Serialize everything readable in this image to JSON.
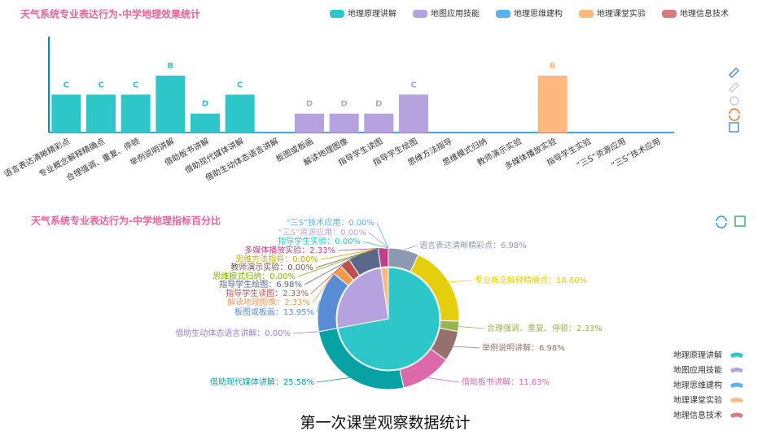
{
  "caption": "第一次课堂观察数据统计",
  "chart_data": [
    {
      "type": "bar",
      "title": "天气系统专业表达行为-中学地理效果统计",
      "legend": "top-right",
      "categories": [
        "语言表达清晰精彩点",
        "专业概念解释精确点",
        "合理强调、重复、停顿",
        "举例说明讲解",
        "借助板书讲解",
        "借助现代媒体讲解",
        "借助生动体态语言讲解",
        "板图或板画",
        "解读地理图像",
        "指导学生读图",
        "指导学生绘图",
        "思维方法指导",
        "思维模式归纳",
        "教师演示实验",
        "多媒体播放实验",
        "指导学生实验",
        "“三S”资源应用",
        "“三S”技术应用"
      ],
      "series": [
        {
          "name": "地理原理讲解",
          "color": "#2ec7c9",
          "values": [
            2,
            2,
            2,
            3,
            1,
            2,
            null,
            null,
            null,
            null,
            null,
            null,
            null,
            null,
            null,
            null,
            null,
            null
          ],
          "value_labels": [
            "C",
            "C",
            "C",
            "B",
            "D",
            "C",
            null,
            null,
            null,
            null,
            null,
            null,
            null,
            null,
            null,
            null,
            null,
            null
          ]
        },
        {
          "name": "地图应用技能",
          "color": "#b6a2de",
          "values": [
            null,
            null,
            null,
            null,
            null,
            null,
            null,
            1,
            1,
            1,
            2,
            null,
            null,
            null,
            null,
            null,
            null,
            null
          ],
          "value_labels": [
            null,
            null,
            null,
            null,
            null,
            null,
            null,
            "D",
            "D",
            "D",
            "C",
            null,
            null,
            null,
            null,
            null,
            null,
            null
          ]
        },
        {
          "name": "地理思维建构",
          "color": "#5ab1ef",
          "values": [
            null,
            null,
            null,
            null,
            null,
            null,
            null,
            null,
            null,
            null,
            null,
            null,
            null,
            null,
            null,
            null,
            null,
            null
          ],
          "value_labels": [
            null,
            null,
            null,
            null,
            null,
            null,
            null,
            null,
            null,
            null,
            null,
            null,
            null,
            null,
            null,
            null,
            null,
            null
          ]
        },
        {
          "name": "地理课堂实验",
          "color": "#ffb980",
          "values": [
            null,
            null,
            null,
            null,
            null,
            null,
            null,
            null,
            null,
            null,
            null,
            null,
            null,
            null,
            3,
            null,
            null,
            null
          ],
          "value_labels": [
            null,
            null,
            null,
            null,
            null,
            null,
            null,
            null,
            null,
            null,
            null,
            null,
            null,
            null,
            "B",
            null,
            null,
            null
          ]
        },
        {
          "name": "地理信息技术",
          "color": "#d87a80",
          "values": [
            null,
            null,
            null,
            null,
            null,
            null,
            null,
            null,
            null,
            null,
            null,
            null,
            null,
            null,
            null,
            null,
            null,
            null
          ],
          "value_labels": [
            null,
            null,
            null,
            null,
            null,
            null,
            null,
            null,
            null,
            null,
            null,
            null,
            null,
            null,
            null,
            null,
            null,
            null
          ]
        }
      ]
    },
    {
      "type": "pie",
      "title": "天气系统专业表达行为-中学地理指标百分比",
      "legend": "bottom-right",
      "categories": [
        "地理原理讲解",
        "地图应用技能",
        "地理思维建构",
        "地理课堂实验",
        "地理信息技术"
      ],
      "values": [
        72.09,
        25.58,
        0,
        2.33,
        0
      ],
      "colors": [
        "#2ec7c9",
        "#b6a2de",
        "#5ab1ef",
        "#ffb980",
        "#d87a80"
      ],
      "outer": {
        "values": [
          6.98,
          18.6,
          2.33,
          6.98,
          11.63,
          25.58,
          0.0,
          13.95,
          2.33,
          2.33,
          6.98,
          0.0,
          0.0,
          0.0,
          2.33,
          0.0,
          0.0,
          0.0
        ],
        "value_labels": [
          "语言表达清晰精彩点：6.98%",
          "专业概念解释精确点：18.60%",
          "合理强调、重复、停顿：2.33%",
          "举例说明讲解：6.98%",
          "借助板书讲解：11.63%",
          "借助现代媒体讲解：25.58%",
          "借助生动体态语言讲解：0.00%",
          "板图或板画：13.95%",
          "解读地理图像：2.33%",
          "指导学生读图：2.33%",
          "指导学生绘图：6.98%",
          "思维方法指导：0.00%",
          "思维模式归纳：0.00%",
          "教师演示实验：0.00%",
          "多媒体播放实验：2.33%",
          "指导学生实验：0.00%",
          "“三S”资源应用：0.00%",
          "“三S”技术应用：0.00%"
        ],
        "colors": [
          "#8d98b3",
          "#e5cf0d",
          "#97b552",
          "#95706d",
          "#dc69aa",
          "#07a2a4",
          "#9a7fd1",
          "#588dd5",
          "#f5994e",
          "#c05050",
          "#59678c",
          "#c9ab00",
          "#7eb00a",
          "#6f5553",
          "#c14089",
          "#2ec7c9",
          "#b6a2de",
          "#5ab1ef"
        ]
      }
    }
  ]
}
